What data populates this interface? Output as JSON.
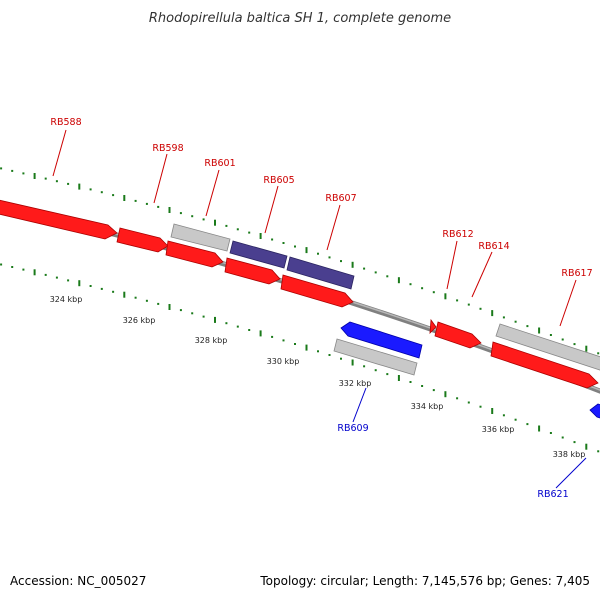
{
  "title": "Rhodopirellula baltica SH 1, complete genome",
  "footer": {
    "accession": "Accession: NC_005027",
    "summary": "Topology: circular; Length: 7,145,576 bp; Genes: 7,405"
  },
  "colors": {
    "forward_gene": "#ff1a1a",
    "reverse_gene": "#1a1aff",
    "rrna_like": "#4a3f8f",
    "other_feature": "#c8c8c8",
    "backbone": "#808080",
    "tick": "#1a7a1a",
    "label_forward": "#cc0000",
    "label_reverse": "#0000cc"
  },
  "scale_labels": [
    "324 kbp",
    "326 kbp",
    "328 kbp",
    "330 kbp",
    "332 kbp",
    "334 kbp",
    "336 kbp",
    "338 kbp"
  ],
  "gene_labels": [
    {
      "id": "RB588",
      "strand": "forward"
    },
    {
      "id": "RB598",
      "strand": "forward"
    },
    {
      "id": "RB601",
      "strand": "forward"
    },
    {
      "id": "RB605",
      "strand": "forward"
    },
    {
      "id": "RB607",
      "strand": "forward"
    },
    {
      "id": "RB612",
      "strand": "forward"
    },
    {
      "id": "RB614",
      "strand": "forward"
    },
    {
      "id": "RB617",
      "strand": "forward"
    },
    {
      "id": "RB609",
      "strand": "reverse"
    },
    {
      "id": "RB621",
      "strand": "reverse"
    }
  ]
}
